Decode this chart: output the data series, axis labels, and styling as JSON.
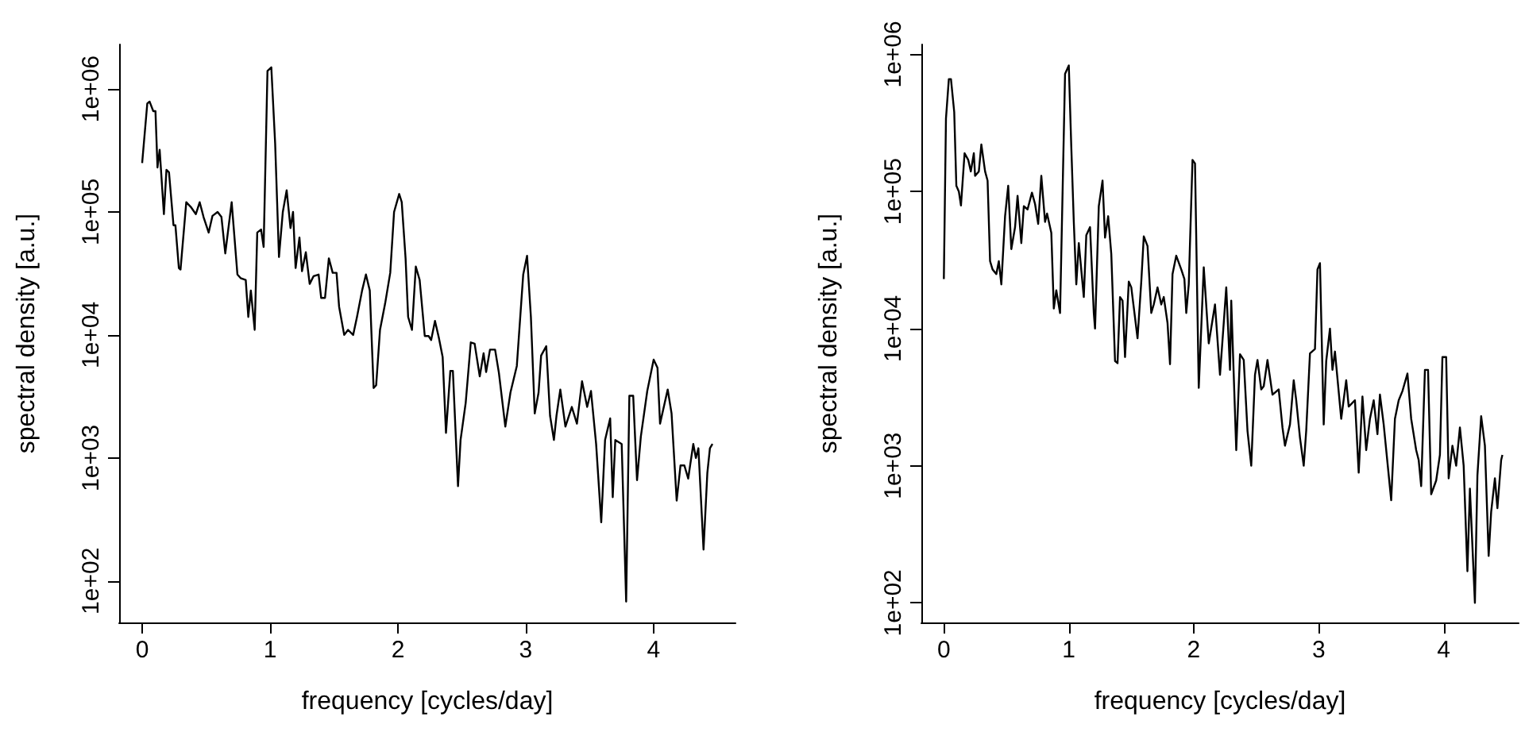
{
  "chart_data": [
    {
      "type": "line",
      "xlabel": "frequency [cycles/day]",
      "ylabel": "spectral density [a.u.]",
      "log": "y",
      "marker": "none",
      "line_style": "solid",
      "xlim": [
        -0.18,
        4.64
      ],
      "ylim": [
        46,
        2300000
      ],
      "xticks": [
        0,
        1,
        2,
        3,
        4
      ],
      "yticks": [
        {
          "value": 100,
          "label": "1e+02"
        },
        {
          "value": 1000,
          "label": "1e+03"
        },
        {
          "value": 10000,
          "label": "1e+04"
        },
        {
          "value": 100000,
          "label": "1e+05"
        },
        {
          "value": 1000000,
          "label": "1e+06"
        }
      ],
      "x": [
        0,
        0.04,
        0.058,
        0.087,
        0.104,
        0.12,
        0.137,
        0.17,
        0.19,
        0.21,
        0.245,
        0.26,
        0.287,
        0.3,
        0.345,
        0.38,
        0.42,
        0.45,
        0.48,
        0.52,
        0.55,
        0.59,
        0.62,
        0.65,
        0.7,
        0.745,
        0.77,
        0.81,
        0.83,
        0.85,
        0.88,
        0.9,
        0.93,
        0.95,
        0.98,
        1.01,
        1.04,
        1.07,
        1.1,
        1.13,
        1.16,
        1.18,
        1.2,
        1.23,
        1.25,
        1.28,
        1.31,
        1.34,
        1.38,
        1.4,
        1.43,
        1.46,
        1.49,
        1.52,
        1.54,
        1.58,
        1.61,
        1.65,
        1.68,
        1.72,
        1.75,
        1.78,
        1.81,
        1.83,
        1.86,
        1.9,
        1.94,
        1.97,
        2.01,
        2.03,
        2.06,
        2.08,
        2.11,
        2.14,
        2.17,
        2.21,
        2.24,
        2.26,
        2.29,
        2.32,
        2.35,
        2.376,
        2.41,
        2.43,
        2.47,
        2.49,
        2.53,
        2.57,
        2.6,
        2.64,
        2.67,
        2.69,
        2.72,
        2.76,
        2.79,
        2.84,
        2.88,
        2.93,
        2.98,
        3.01,
        3.04,
        3.07,
        3.1,
        3.12,
        3.16,
        3.19,
        3.22,
        3.24,
        3.27,
        3.31,
        3.36,
        3.4,
        3.44,
        3.48,
        3.51,
        3.55,
        3.59,
        3.62,
        3.66,
        3.68,
        3.7,
        3.75,
        3.785,
        3.81,
        3.84,
        3.87,
        3.9,
        3.95,
        4.0,
        4.03,
        4.05,
        4.11,
        4.14,
        4.18,
        4.21,
        4.24,
        4.27,
        4.31,
        4.33,
        4.35,
        4.39,
        4.42,
        4.44,
        4.46
      ],
      "series": [
        {
          "color": "#000000",
          "values": [
            250000,
            760000,
            790000,
            660000,
            660000,
            230000,
            320000,
            96000,
            220000,
            210000,
            78000,
            78000,
            35000,
            34000,
            120000,
            110000,
            96000,
            120000,
            91000,
            68000,
            93000,
            100000,
            91000,
            46000,
            120000,
            31000,
            29000,
            28000,
            14000,
            23000,
            11000,
            68000,
            72000,
            52000,
            1400000,
            1500000,
            360000,
            43000,
            100000,
            150000,
            74000,
            100000,
            35000,
            62000,
            33000,
            47000,
            26000,
            30000,
            31000,
            20000,
            20000,
            42000,
            32000,
            32000,
            17000,
            10000,
            11000,
            10000,
            14000,
            23000,
            31000,
            23000,
            3700,
            3900,
            11000,
            18000,
            32000,
            100000,
            140000,
            120000,
            42000,
            14000,
            11000,
            36000,
            28000,
            9800,
            9800,
            9100,
            13000,
            9500,
            6600,
            1600,
            5100,
            5100,
            590,
            1400,
            2800,
            8700,
            8500,
            4600,
            7100,
            5000,
            7600,
            7600,
            4900,
            1800,
            3400,
            5600,
            31000,
            44000,
            14000,
            2300,
            3400,
            6800,
            8100,
            2200,
            1400,
            2200,
            3600,
            1800,
            2600,
            1900,
            4200,
            2600,
            3500,
            1300,
            300,
            1400,
            2100,
            480,
            1400,
            1300,
            68,
            3200,
            3200,
            660,
            1500,
            3500,
            6300,
            5400,
            1900,
            3600,
            2300,
            450,
            870,
            870,
            680,
            1300,
            1000,
            1200,
            180,
            760,
            1200,
            1300
          ]
        }
      ]
    },
    {
      "type": "line",
      "xlabel": "frequency [cycles/day]",
      "ylabel": "spectral density [a.u.]",
      "log": "y",
      "marker": "none",
      "line_style": "solid",
      "xlim": [
        -0.18,
        4.6
      ],
      "ylim": [
        72,
        1180000
      ],
      "xticks": [
        0,
        1,
        2,
        3,
        4
      ],
      "yticks": [
        {
          "value": 100,
          "label": "1e+02"
        },
        {
          "value": 1000,
          "label": "1e+03"
        },
        {
          "value": 10000,
          "label": "1e+04"
        },
        {
          "value": 100000,
          "label": "1e+05"
        },
        {
          "value": 1000000,
          "label": "1e+06"
        }
      ],
      "x": [
        0,
        0.017,
        0.04,
        0.057,
        0.083,
        0.1,
        0.12,
        0.137,
        0.166,
        0.195,
        0.216,
        0.24,
        0.25,
        0.28,
        0.3,
        0.33,
        0.35,
        0.37,
        0.39,
        0.42,
        0.44,
        0.46,
        0.49,
        0.515,
        0.54,
        0.57,
        0.59,
        0.62,
        0.64,
        0.67,
        0.705,
        0.73,
        0.755,
        0.78,
        0.81,
        0.826,
        0.86,
        0.88,
        0.9,
        0.93,
        0.97,
        1.0,
        1.02,
        1.04,
        1.06,
        1.08,
        1.12,
        1.14,
        1.17,
        1.2,
        1.21,
        1.24,
        1.27,
        1.29,
        1.315,
        1.34,
        1.37,
        1.39,
        1.41,
        1.43,
        1.45,
        1.48,
        1.5,
        1.53,
        1.55,
        1.58,
        1.6,
        1.63,
        1.66,
        1.68,
        1.71,
        1.74,
        1.76,
        1.79,
        1.81,
        1.83,
        1.86,
        1.9,
        1.925,
        1.94,
        1.96,
        1.99,
        2.01,
        2.04,
        2.08,
        2.12,
        2.17,
        2.21,
        2.24,
        2.26,
        2.29,
        2.3,
        2.34,
        2.37,
        2.4,
        2.43,
        2.46,
        2.49,
        2.51,
        2.54,
        2.56,
        2.59,
        2.63,
        2.68,
        2.71,
        2.73,
        2.77,
        2.8,
        2.82,
        2.85,
        2.88,
        2.9,
        2.93,
        2.97,
        2.99,
        3.01,
        3.04,
        3.06,
        3.09,
        3.11,
        3.13,
        3.18,
        3.22,
        3.24,
        3.29,
        3.32,
        3.35,
        3.38,
        3.41,
        3.44,
        3.47,
        3.49,
        3.52,
        3.58,
        3.61,
        3.64,
        3.67,
        3.71,
        3.74,
        3.78,
        3.8,
        3.82,
        3.85,
        3.875,
        3.9,
        3.94,
        3.97,
        3.99,
        4.02,
        4.04,
        4.07,
        4.1,
        4.13,
        4.16,
        4.19,
        4.21,
        4.25,
        4.27,
        4.3,
        4.33,
        4.36,
        4.38,
        4.41,
        4.43,
        4.46,
        4.47
      ],
      "series": [
        {
          "color": "#000000",
          "values": [
            23000,
            340000,
            660000,
            660000,
            380000,
            110000,
            100000,
            79000,
            190000,
            170000,
            140000,
            190000,
            130000,
            140000,
            220000,
            140000,
            120000,
            31000,
            27000,
            25000,
            31000,
            21000,
            66000,
            110000,
            38000,
            55000,
            93000,
            42000,
            78000,
            74000,
            98000,
            81000,
            58000,
            130000,
            60000,
            69000,
            50000,
            14000,
            19000,
            13000,
            720000,
            830000,
            210000,
            60000,
            21000,
            42000,
            17000,
            48000,
            55000,
            13000,
            10000,
            78000,
            120000,
            46000,
            66000,
            35000,
            5800,
            5600,
            17000,
            16000,
            6200,
            22000,
            20000,
            12000,
            8500,
            22000,
            47000,
            40000,
            13000,
            15000,
            20000,
            15000,
            17000,
            11000,
            5500,
            25000,
            34000,
            27000,
            23000,
            13000,
            21000,
            170000,
            160000,
            3700,
            28000,
            7800,
            15000,
            4600,
            11000,
            20000,
            5000,
            16000,
            1300,
            6500,
            5900,
            1800,
            1000,
            4600,
            5900,
            3600,
            3800,
            5900,
            3300,
            3600,
            1900,
            1400,
            2000,
            4200,
            3000,
            1600,
            1000,
            1800,
            6600,
            7100,
            27000,
            30000,
            2000,
            5800,
            10000,
            5000,
            6800,
            2200,
            4200,
            2700,
            3000,
            890,
            3200,
            1300,
            2200,
            3000,
            1700,
            3300,
            2000,
            560,
            2200,
            3000,
            3500,
            4700,
            2200,
            1300,
            1100,
            710,
            5000,
            5000,
            620,
            780,
            1200,
            6200,
            6200,
            810,
            1400,
            1000,
            1900,
            1000,
            170,
            680,
            100,
            850,
            2300,
            1400,
            220,
            460,
            810,
            490,
            1100,
            1200
          ]
        }
      ]
    }
  ]
}
